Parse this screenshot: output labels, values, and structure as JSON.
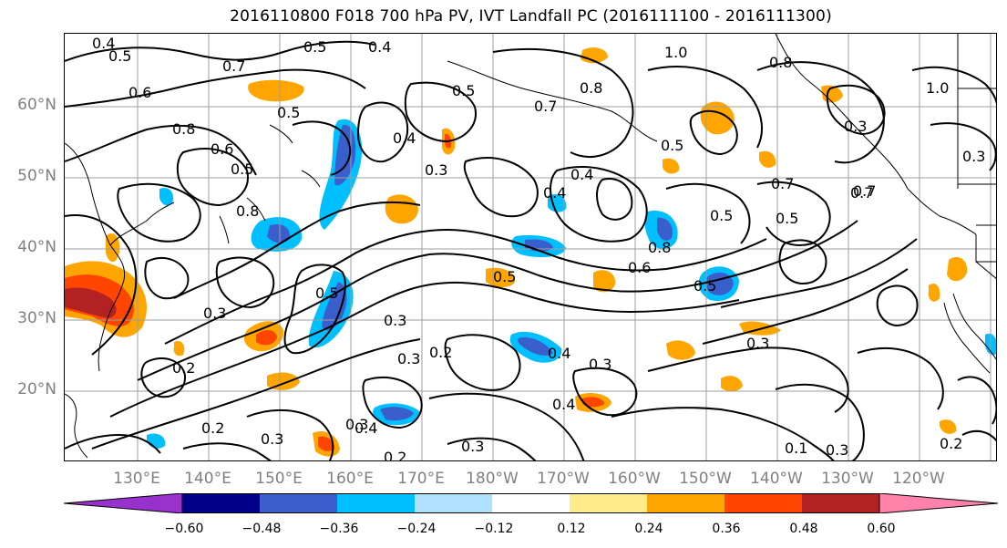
{
  "title": "2016110800 F018 700 hPa PV, IVT Landfall PC (2016111100 - 2016111300)",
  "lat_labels": [
    "60°N",
    "50°N",
    "40°N",
    "30°N",
    "20°N"
  ],
  "lon_labels": [
    "130°E",
    "140°E",
    "150°E",
    "160°E",
    "170°E",
    "180°W",
    "170°W",
    "160°W",
    "150°W",
    "140°W",
    "130°W",
    "120°W"
  ],
  "colorbar": {
    "ticks": [
      "−0.60",
      "−0.48",
      "−0.36",
      "−0.24",
      "−0.12",
      "0.12",
      "0.24",
      "0.36",
      "0.48",
      "0.60"
    ],
    "colors": [
      "#9932cc",
      "#00008b",
      "#3a5fcd",
      "#00bfff",
      "#b0e2ff",
      "#ffffff",
      "#ffec8b",
      "#ffa500",
      "#ff4500",
      "#b22222",
      "#ff82ab"
    ]
  },
  "contour_labels": [
    "0.4",
    "0.5",
    "0.7",
    "0.5",
    "0.4",
    "1.0",
    "0.8",
    "0.6",
    "0.5",
    "0.7",
    "0.8",
    "0.5",
    "0.8",
    "0.3",
    "0.5",
    "0.4",
    "0.6",
    "0.3",
    "0.4",
    "0.5",
    "0.7",
    "0.8",
    "0.5",
    "0.4",
    "0.7",
    "0.5",
    "1.0",
    "0.6",
    "0.5",
    "0.3",
    "0.3",
    "0.2",
    "0.3",
    "0.4",
    "0.3",
    "0.2",
    "0.2",
    "0.4",
    "0.3",
    "0.3",
    "0.4",
    "0.3",
    "0.2",
    "0.3",
    "0.1",
    "0.3",
    "0.2",
    "0.5",
    "0.3",
    "0.7",
    "0.8",
    "0.5"
  ]
}
